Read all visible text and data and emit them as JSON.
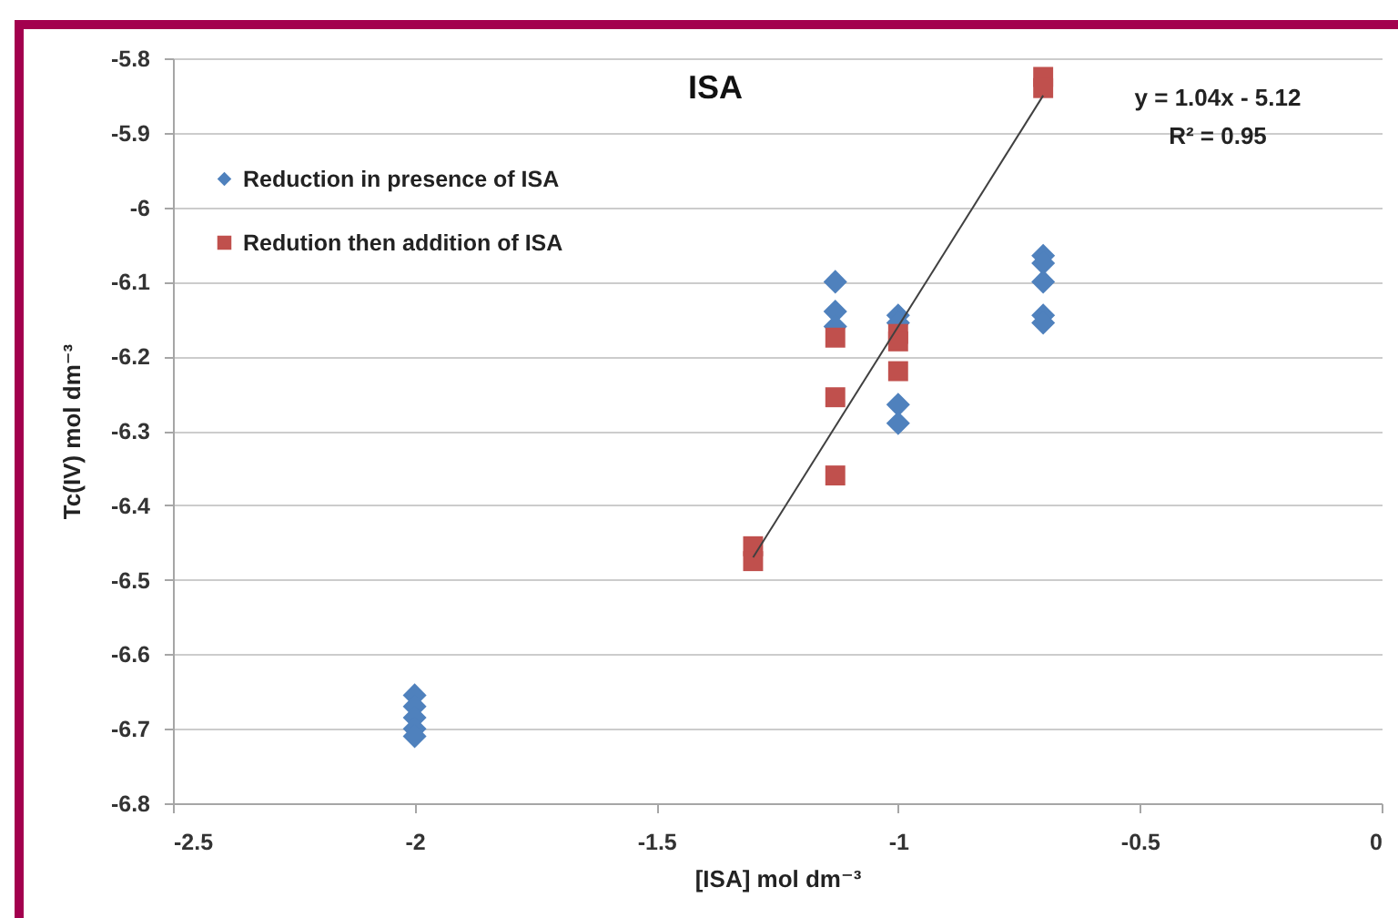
{
  "chart_data": {
    "type": "scatter",
    "title": "ISA",
    "xlabel": "[ISA] mol dm⁻³",
    "ylabel": "Tc(IV) mol dm⁻³",
    "annotations": [
      "y = 1.04x - 5.12",
      "R² = 0.95"
    ],
    "xlim": [
      -2.5,
      0
    ],
    "xticks": [
      -2.5,
      -2,
      -1.5,
      -1,
      -0.5,
      0
    ],
    "ylim": [
      -6.8,
      -5.8
    ],
    "yticks": [
      -6.8,
      -6.7,
      -6.6,
      -6.5,
      -6.4,
      -6.3,
      -6.2,
      -6.1,
      -6,
      -5.9,
      -5.8
    ],
    "grid": "y",
    "legend": "top left",
    "series": [
      {
        "name": "Reduction in presence of ISA",
        "color": "#4f81bd",
        "marker": "diamond",
        "x": [
          -2,
          -2,
          -2,
          -2,
          -2,
          -1.13,
          -1.13,
          -1.13,
          -1,
          -1,
          -1,
          -1,
          -0.7,
          -0.7,
          -0.7,
          -0.7,
          -0.7
        ],
        "values": [
          -6.655,
          -6.67,
          -6.685,
          -6.7,
          -6.71,
          -6.1,
          -6.14,
          -6.16,
          -6.145,
          -6.155,
          -6.265,
          -6.29,
          -6.065,
          -6.075,
          -6.1,
          -6.145,
          -6.155
        ]
      },
      {
        "name": "Redution then addition of ISA",
        "color": "#c0504d",
        "marker": "square",
        "x": [
          -1.3,
          -1.3,
          -1.13,
          -1.13,
          -1.13,
          -1,
          -1,
          -1,
          -0.7,
          -0.7
        ],
        "values": [
          -6.455,
          -6.475,
          -6.175,
          -6.255,
          -6.36,
          -6.17,
          -6.18,
          -6.22,
          -5.825,
          -5.84
        ]
      },
      {
        "type": "line",
        "color": "#404040",
        "x": [
          -1.3,
          -0.7
        ],
        "values": [
          -6.47,
          -5.85
        ]
      }
    ]
  }
}
